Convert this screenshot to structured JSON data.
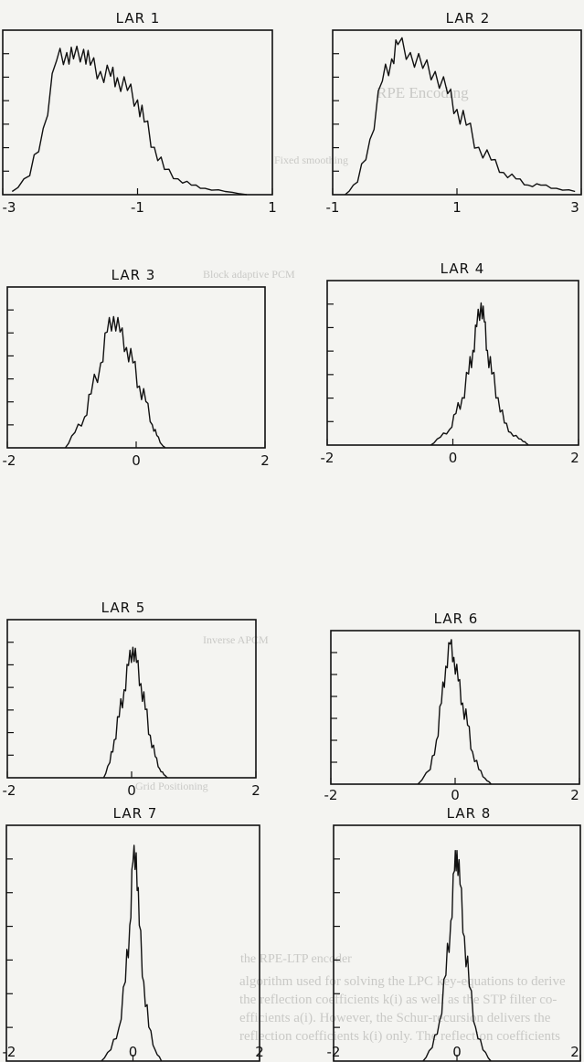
{
  "colors": {
    "background": "#f4f4f1",
    "ink": "#111111",
    "ghost": "#c9c9c6"
  },
  "background_text": [
    "RPE Encoding",
    "Fixed smoothing",
    "Block adaptive PCM",
    "Inverse APCM",
    "Grid Positioning",
    "the RPE-LTP encoder",
    "algorithm used for solving the LPC key-equations to derive",
    "the reflection coefficients k(i) as well as the STP filter co-",
    "efficients a(i). However, the Schur-recursion delivers the",
    "reflection coefficients k(i) only. The reflection coefficients"
  ],
  "chart_data": [
    {
      "type": "line",
      "title": "LAR 1",
      "xlim": [
        -3,
        1
      ],
      "xticks": [
        "-3",
        "-1",
        "1"
      ],
      "xtick_values": [
        -3,
        -1,
        1
      ],
      "series": [
        {
          "values": [
            [
              -2.86,
              0.02
            ],
            [
              -2.6,
              0.12
            ],
            [
              -2.4,
              0.42
            ],
            [
              -2.2,
              0.85
            ],
            [
              -2.05,
              0.9
            ],
            [
              -1.95,
              0.86
            ],
            [
              -1.8,
              0.92
            ],
            [
              -1.7,
              0.82
            ],
            [
              -1.55,
              0.78
            ],
            [
              -1.4,
              0.75
            ],
            [
              -1.3,
              0.74
            ],
            [
              -1.15,
              0.66
            ],
            [
              -1.0,
              0.6
            ],
            [
              -0.9,
              0.46
            ],
            [
              -0.75,
              0.3
            ],
            [
              -0.6,
              0.16
            ],
            [
              -0.4,
              0.1
            ],
            [
              -0.2,
              0.06
            ],
            [
              0.0,
              0.04
            ],
            [
              0.3,
              0.02
            ],
            [
              0.62,
              0.0
            ]
          ]
        }
      ]
    },
    {
      "type": "line",
      "title": "LAR 2",
      "xlim": [
        -1,
        3
      ],
      "xticks": [
        "-1",
        "1",
        "3"
      ],
      "xtick_values": [
        -1,
        1,
        3
      ],
      "series": [
        {
          "values": [
            [
              -0.8,
              0.0
            ],
            [
              -0.6,
              0.08
            ],
            [
              -0.4,
              0.35
            ],
            [
              -0.2,
              0.72
            ],
            [
              -0.05,
              0.86
            ],
            [
              0.05,
              0.95
            ],
            [
              0.25,
              0.9
            ],
            [
              0.45,
              0.8
            ],
            [
              0.65,
              0.78
            ],
            [
              0.85,
              0.64
            ],
            [
              1.0,
              0.54
            ],
            [
              1.15,
              0.44
            ],
            [
              1.35,
              0.3
            ],
            [
              1.55,
              0.22
            ],
            [
              1.75,
              0.14
            ],
            [
              1.95,
              0.1
            ],
            [
              2.15,
              0.06
            ],
            [
              2.35,
              0.06
            ],
            [
              2.6,
              0.04
            ],
            [
              2.9,
              0.02
            ]
          ]
        }
      ]
    },
    {
      "type": "line",
      "title": "LAR 3",
      "xlim": [
        -2,
        2
      ],
      "xticks": [
        "-2",
        "0",
        "2"
      ],
      "xtick_values": [
        -2,
        0,
        2
      ],
      "series": [
        {
          "values": [
            [
              -1.1,
              0.0
            ],
            [
              -0.95,
              0.1
            ],
            [
              -0.8,
              0.2
            ],
            [
              -0.7,
              0.35
            ],
            [
              -0.55,
              0.55
            ],
            [
              -0.45,
              0.75
            ],
            [
              -0.35,
              0.85
            ],
            [
              -0.25,
              0.75
            ],
            [
              -0.15,
              0.65
            ],
            [
              -0.05,
              0.55
            ],
            [
              0.05,
              0.4
            ],
            [
              0.15,
              0.3
            ],
            [
              0.25,
              0.15
            ],
            [
              0.32,
              0.08
            ],
            [
              0.4,
              0.02
            ],
            [
              0.45,
              0.0
            ]
          ]
        }
      ]
    },
    {
      "type": "line",
      "title": "LAR 4",
      "xlim": [
        -2,
        2
      ],
      "xticks": [
        "-2",
        "0",
        "2"
      ],
      "xtick_values": [
        -2,
        0,
        2
      ],
      "series": [
        {
          "values": [
            [
              -0.35,
              0.0
            ],
            [
              -0.2,
              0.05
            ],
            [
              -0.05,
              0.1
            ],
            [
              0.05,
              0.2
            ],
            [
              0.15,
              0.3
            ],
            [
              0.25,
              0.45
            ],
            [
              0.32,
              0.6
            ],
            [
              0.38,
              0.75
            ],
            [
              0.45,
              0.9
            ],
            [
              0.5,
              0.78
            ],
            [
              0.55,
              0.6
            ],
            [
              0.62,
              0.45
            ],
            [
              0.72,
              0.3
            ],
            [
              0.82,
              0.14
            ],
            [
              0.92,
              0.08
            ],
            [
              1.05,
              0.04
            ],
            [
              1.15,
              0.02
            ],
            [
              1.2,
              0.0
            ]
          ]
        }
      ]
    },
    {
      "type": "line",
      "title": "LAR 5",
      "xlim": [
        -2,
        2
      ],
      "xticks": [
        "-2",
        "0",
        "2"
      ],
      "xtick_values": [
        -2,
        0,
        2
      ],
      "series": [
        {
          "values": [
            [
              -0.45,
              0.0
            ],
            [
              -0.35,
              0.1
            ],
            [
              -0.28,
              0.25
            ],
            [
              -0.2,
              0.4
            ],
            [
              -0.12,
              0.58
            ],
            [
              -0.05,
              0.74
            ],
            [
              0.02,
              0.86
            ],
            [
              0.08,
              0.76
            ],
            [
              0.15,
              0.62
            ],
            [
              0.22,
              0.45
            ],
            [
              0.3,
              0.28
            ],
            [
              0.38,
              0.14
            ],
            [
              0.45,
              0.06
            ],
            [
              0.52,
              0.02
            ],
            [
              0.58,
              0.0
            ]
          ]
        }
      ]
    },
    {
      "type": "line",
      "title": "LAR 6",
      "xlim": [
        -2,
        2
      ],
      "xticks": [
        "-2",
        "0",
        "2"
      ],
      "xtick_values": [
        -2,
        0,
        2
      ],
      "series": [
        {
          "values": [
            [
              -0.6,
              0.0
            ],
            [
              -0.4,
              0.1
            ],
            [
              -0.3,
              0.3
            ],
            [
              -0.22,
              0.55
            ],
            [
              -0.15,
              0.8
            ],
            [
              -0.08,
              0.95
            ],
            [
              -0.02,
              0.86
            ],
            [
              0.05,
              0.7
            ],
            [
              0.12,
              0.55
            ],
            [
              0.2,
              0.4
            ],
            [
              0.28,
              0.22
            ],
            [
              0.38,
              0.1
            ],
            [
              0.48,
              0.04
            ],
            [
              0.58,
              0.0
            ]
          ]
        }
      ]
    },
    {
      "type": "line",
      "title": "LAR 7",
      "xlim": [
        -2,
        2
      ],
      "xticks": [
        "-2",
        "0",
        "2"
      ],
      "xtick_values": [
        -2,
        0,
        2
      ],
      "series": [
        {
          "values": [
            [
              -0.5,
              0.0
            ],
            [
              -0.35,
              0.05
            ],
            [
              -0.22,
              0.15
            ],
            [
              -0.12,
              0.35
            ],
            [
              -0.05,
              0.6
            ],
            [
              0.0,
              0.88
            ],
            [
              0.05,
              0.92
            ],
            [
              0.1,
              0.6
            ],
            [
              0.17,
              0.35
            ],
            [
              0.25,
              0.15
            ],
            [
              0.35,
              0.05
            ],
            [
              0.45,
              0.0
            ]
          ]
        }
      ]
    },
    {
      "type": "line",
      "title": "LAR 8",
      "xlim": [
        -2,
        2
      ],
      "xticks": [
        "-2",
        "0",
        "2"
      ],
      "xtick_values": [
        -2,
        0,
        2
      ],
      "series": [
        {
          "values": [
            [
              -0.55,
              0.0
            ],
            [
              -0.4,
              0.06
            ],
            [
              -0.28,
              0.18
            ],
            [
              -0.18,
              0.38
            ],
            [
              -0.1,
              0.62
            ],
            [
              -0.04,
              0.84
            ],
            [
              0.0,
              0.93
            ],
            [
              0.05,
              0.78
            ],
            [
              0.12,
              0.55
            ],
            [
              0.2,
              0.33
            ],
            [
              0.3,
              0.15
            ],
            [
              0.42,
              0.05
            ],
            [
              0.55,
              0.0
            ]
          ]
        }
      ]
    }
  ]
}
